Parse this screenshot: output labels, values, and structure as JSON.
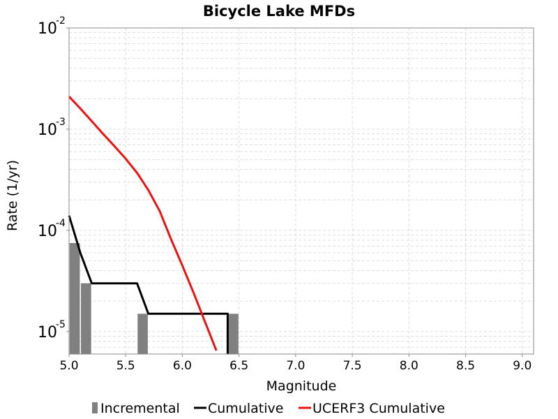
{
  "chart_data": {
    "type": "line",
    "title": "Bicycle Lake MFDs",
    "xlabel": "Magnitude",
    "ylabel": "Rate (1/yr)",
    "xlim": [
      5.0,
      9.1
    ],
    "ylim": [
      6e-06,
      0.01
    ],
    "yscale": "log",
    "grid": true,
    "legend_position": "bottom",
    "xticks": [
      5.0,
      5.5,
      6.0,
      6.5,
      7.0,
      7.5,
      8.0,
      8.5,
      9.0
    ],
    "xtick_labels": [
      "5.0",
      "5.5",
      "6.0",
      "6.5",
      "7.0",
      "7.5",
      "8.0",
      "8.5",
      "9.0"
    ],
    "yticks": [
      {
        "value": 1e-05,
        "base": "10",
        "exp": "-5"
      },
      {
        "value": 0.0001,
        "base": "10",
        "exp": "-4"
      },
      {
        "value": 0.001,
        "base": "10",
        "exp": "-3"
      },
      {
        "value": 0.01,
        "base": "10",
        "exp": "-2"
      }
    ],
    "series": [
      {
        "name": "Incremental",
        "kind": "bar",
        "color": "#808080",
        "x": [
          5.05,
          5.15,
          5.65,
          6.45
        ],
        "y": [
          7.5e-05,
          3e-05,
          1.5e-05,
          1.5e-05
        ]
      },
      {
        "name": "Cumulative",
        "kind": "line",
        "color": "#000000",
        "x": [
          5.0,
          5.1,
          5.2,
          5.6,
          5.7,
          6.4,
          6.4
        ],
        "y": [
          0.00014,
          6e-05,
          3e-05,
          3e-05,
          1.5e-05,
          1.5e-05,
          6e-06
        ]
      },
      {
        "name": "UCERF3 Cumulative",
        "kind": "line",
        "color": "#ee1111",
        "x": [
          5.0,
          5.1,
          5.2,
          5.3,
          5.4,
          5.5,
          5.6,
          5.7,
          5.8,
          5.9,
          6.0,
          6.1,
          6.2,
          6.3
        ],
        "y": [
          0.0021,
          0.0016,
          0.0012,
          0.0009,
          0.00068,
          0.00051,
          0.00037,
          0.00025,
          0.000155,
          8.2e-05,
          4.5e-05,
          2.4e-05,
          1.25e-05,
          6.5e-06
        ]
      }
    ]
  }
}
